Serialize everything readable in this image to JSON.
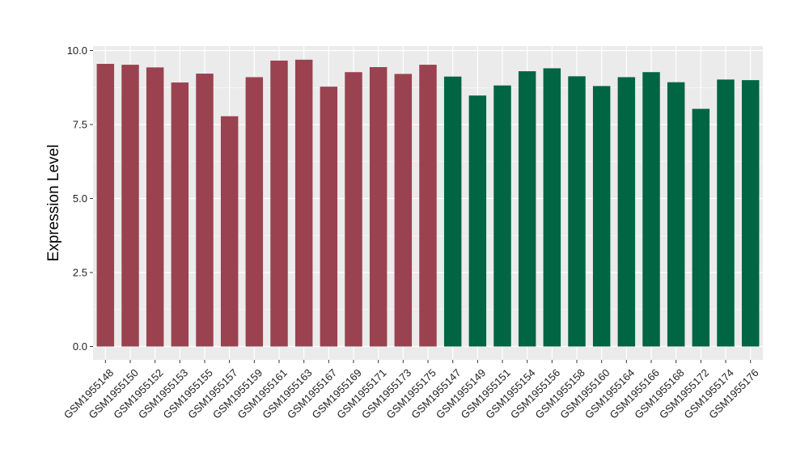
{
  "chart_data": {
    "type": "bar",
    "title": "",
    "xlabel": "",
    "ylabel": "Expression Level",
    "ylim": [
      0,
      10
    ],
    "yticks": [
      "0.0",
      "2.5",
      "5.0",
      "7.5",
      "10.0"
    ],
    "ytick_values": [
      0,
      2.5,
      5,
      7.5,
      10
    ],
    "grid": true,
    "legend": "none",
    "categories": [
      "GSM1955148",
      "GSM1955150",
      "GSM1955152",
      "GSM1955153",
      "GSM1955155",
      "GSM1955157",
      "GSM1955159",
      "GSM1955161",
      "GSM1955163",
      "GSM1955167",
      "GSM1955169",
      "GSM1955171",
      "GSM1955173",
      "GSM1955175",
      "GSM1955147",
      "GSM1955149",
      "GSM1955151",
      "GSM1955154",
      "GSM1955156",
      "GSM1955158",
      "GSM1955160",
      "GSM1955164",
      "GSM1955166",
      "GSM1955168",
      "GSM1955172",
      "GSM1955174",
      "GSM1955176"
    ],
    "values": [
      9.55,
      9.52,
      9.43,
      8.92,
      9.22,
      7.78,
      9.1,
      9.66,
      9.69,
      8.78,
      9.27,
      9.44,
      9.21,
      9.52,
      9.12,
      8.48,
      8.82,
      9.3,
      9.4,
      9.13,
      8.8,
      9.1,
      9.27,
      8.93,
      8.03,
      9.02,
      9.0
    ],
    "groups": [
      0,
      0,
      0,
      0,
      0,
      0,
      0,
      0,
      0,
      0,
      0,
      0,
      0,
      0,
      1,
      1,
      1,
      1,
      1,
      1,
      1,
      1,
      1,
      1,
      1,
      1,
      1
    ],
    "colors": {
      "group_0": "#9b4250",
      "group_1": "#006543",
      "panel_bg": "#ebebeb",
      "grid": "#ffffff"
    }
  }
}
